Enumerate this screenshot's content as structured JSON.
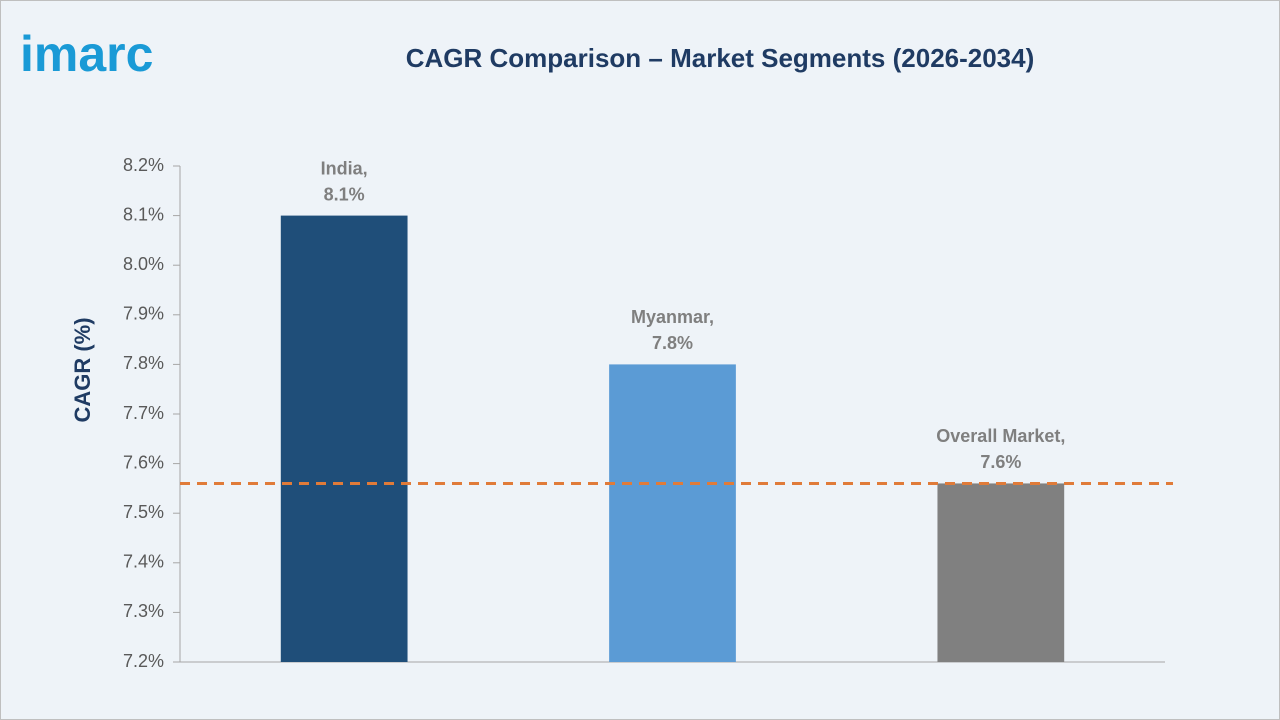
{
  "chart_data": {
    "type": "bar",
    "logo": "imarc",
    "title": "CAGR Comparison – Market Segments (2026-2034)",
    "y_label": "CAGR (%)",
    "categories": [
      "India,",
      "Myanmar,",
      "Overall Market,"
    ],
    "values": [
      8.1,
      7.8,
      7.56
    ],
    "value_labels": [
      "8.1%",
      "7.8%",
      "7.6%"
    ],
    "colors": [
      "#1f4e79",
      "#5b9bd5",
      "#808080"
    ],
    "reference_line": {
      "value": 7.56,
      "color": "#e07b39"
    },
    "ylim": [
      7.2,
      8.2
    ],
    "yticks": [
      {
        "value": 7.2,
        "label": "7.2%"
      },
      {
        "value": 7.3,
        "label": "7.3%"
      },
      {
        "value": 7.4,
        "label": "7.4%"
      },
      {
        "value": 7.5,
        "label": "7.5%"
      },
      {
        "value": 7.6,
        "label": "7.6%"
      },
      {
        "value": 7.7,
        "label": "7.7%"
      },
      {
        "value": 7.8,
        "label": "7.8%"
      },
      {
        "value": 7.9,
        "label": "7.9%"
      },
      {
        "value": 8.0,
        "label": "8.0%"
      },
      {
        "value": 8.1,
        "label": "8.1%"
      },
      {
        "value": 8.2,
        "label": "8.2%"
      }
    ],
    "grid": false
  }
}
